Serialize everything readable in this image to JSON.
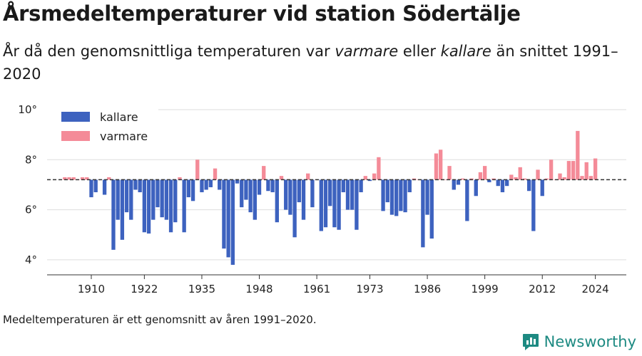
{
  "title": "Årsmedeltemperaturer vid station Södertälje",
  "subtitle": {
    "before": "År då den genomsnittliga temperaturen var ",
    "warm_word": "varmare",
    "middle": " eller ",
    "cold_word": "kallare",
    "after": " än snittet 1991–2020"
  },
  "source_note": "Medeltemperaturen är ett genomsnitt av åren 1991–2020.",
  "brand": "Newsworthy",
  "colors": {
    "cold": "#3d62bf",
    "warm": "#f48b98",
    "reference": "#333333",
    "grid": "#dddddd",
    "brand": "#1d8a82"
  },
  "chart_data": {
    "type": "bar",
    "xlabel": "",
    "ylabel": "",
    "baseline": 7.2,
    "ylim": [
      3.4,
      10
    ],
    "y_ticks": [
      10,
      8,
      6,
      4
    ],
    "y_tick_labels": [
      "10°",
      "8°",
      "6°",
      "4°"
    ],
    "x_ticks": [
      "1910",
      "1922",
      "1935",
      "1948",
      "1961",
      "1973",
      "1986",
      "1999",
      "2012",
      "2024"
    ],
    "legend": {
      "position": "top-left",
      "items": [
        {
          "label": "kallare",
          "color": "#3d62bf"
        },
        {
          "label": "varmare",
          "color": "#f48b98"
        }
      ]
    },
    "series": [
      {
        "name": "Årsmedeltemperatur",
        "x": [
          1904,
          1905,
          1906,
          1907,
          1908,
          1909,
          1910,
          1911,
          1912,
          1913,
          1914,
          1915,
          1916,
          1917,
          1918,
          1919,
          1920,
          1921,
          1922,
          1923,
          1924,
          1925,
          1926,
          1927,
          1928,
          1929,
          1930,
          1931,
          1932,
          1933,
          1934,
          1935,
          1936,
          1937,
          1938,
          1939,
          1940,
          1941,
          1942,
          1943,
          1944,
          1945,
          1946,
          1947,
          1948,
          1949,
          1950,
          1951,
          1952,
          1953,
          1954,
          1955,
          1956,
          1957,
          1958,
          1959,
          1960,
          1961,
          1962,
          1963,
          1964,
          1965,
          1966,
          1967,
          1968,
          1969,
          1970,
          1971,
          1972,
          1973,
          1974,
          1975,
          1976,
          1977,
          1978,
          1979,
          1980,
          1981,
          1982,
          1983,
          1984,
          1985,
          1986,
          1987,
          1988,
          1989,
          1990,
          1991,
          1992,
          1993,
          1994,
          1995,
          1996,
          1997,
          1998,
          1999,
          2000,
          2001,
          2002,
          2003,
          2004,
          2005,
          2006,
          2007,
          2008,
          2009,
          2010,
          2011,
          2012,
          2013,
          2014,
          2015,
          2016,
          2017,
          2018,
          2019,
          2020,
          2021,
          2022,
          2023,
          2024
        ],
        "values": [
          7.3,
          7.3,
          7.3,
          7.2,
          7.3,
          7.3,
          6.5,
          6.7,
          7.2,
          6.6,
          7.3,
          4.4,
          5.6,
          4.8,
          5.9,
          5.6,
          6.8,
          6.7,
          5.1,
          5.05,
          5.6,
          6.1,
          5.7,
          5.6,
          5.1,
          5.5,
          7.3,
          5.1,
          6.5,
          6.35,
          8.0,
          6.7,
          6.8,
          6.9,
          7.65,
          6.8,
          4.45,
          4.1,
          3.8,
          7.05,
          6.1,
          6.4,
          5.9,
          5.6,
          6.6,
          7.75,
          6.75,
          6.7,
          5.5,
          7.35,
          6.0,
          5.8,
          4.9,
          6.3,
          5.6,
          7.45,
          6.1,
          7.2,
          5.15,
          5.3,
          6.15,
          5.3,
          5.2,
          6.7,
          6.0,
          6.0,
          5.2,
          6.7,
          7.35,
          7.15,
          7.45,
          8.1,
          5.95,
          6.3,
          5.8,
          5.75,
          5.95,
          5.9,
          6.7,
          7.25,
          7.2,
          4.5,
          5.8,
          4.85,
          8.25,
          8.4,
          7.2,
          7.75,
          6.8,
          7.0,
          7.25,
          5.55,
          7.25,
          6.55,
          7.5,
          7.75,
          7.1,
          7.25,
          6.95,
          6.7,
          6.95,
          7.4,
          7.3,
          7.7,
          7.25,
          6.75,
          5.15,
          7.6,
          6.55,
          7.25,
          8.0,
          7.2,
          7.45,
          7.3,
          7.95,
          7.95,
          9.15,
          7.35,
          7.9,
          7.35,
          8.05
        ]
      }
    ]
  }
}
